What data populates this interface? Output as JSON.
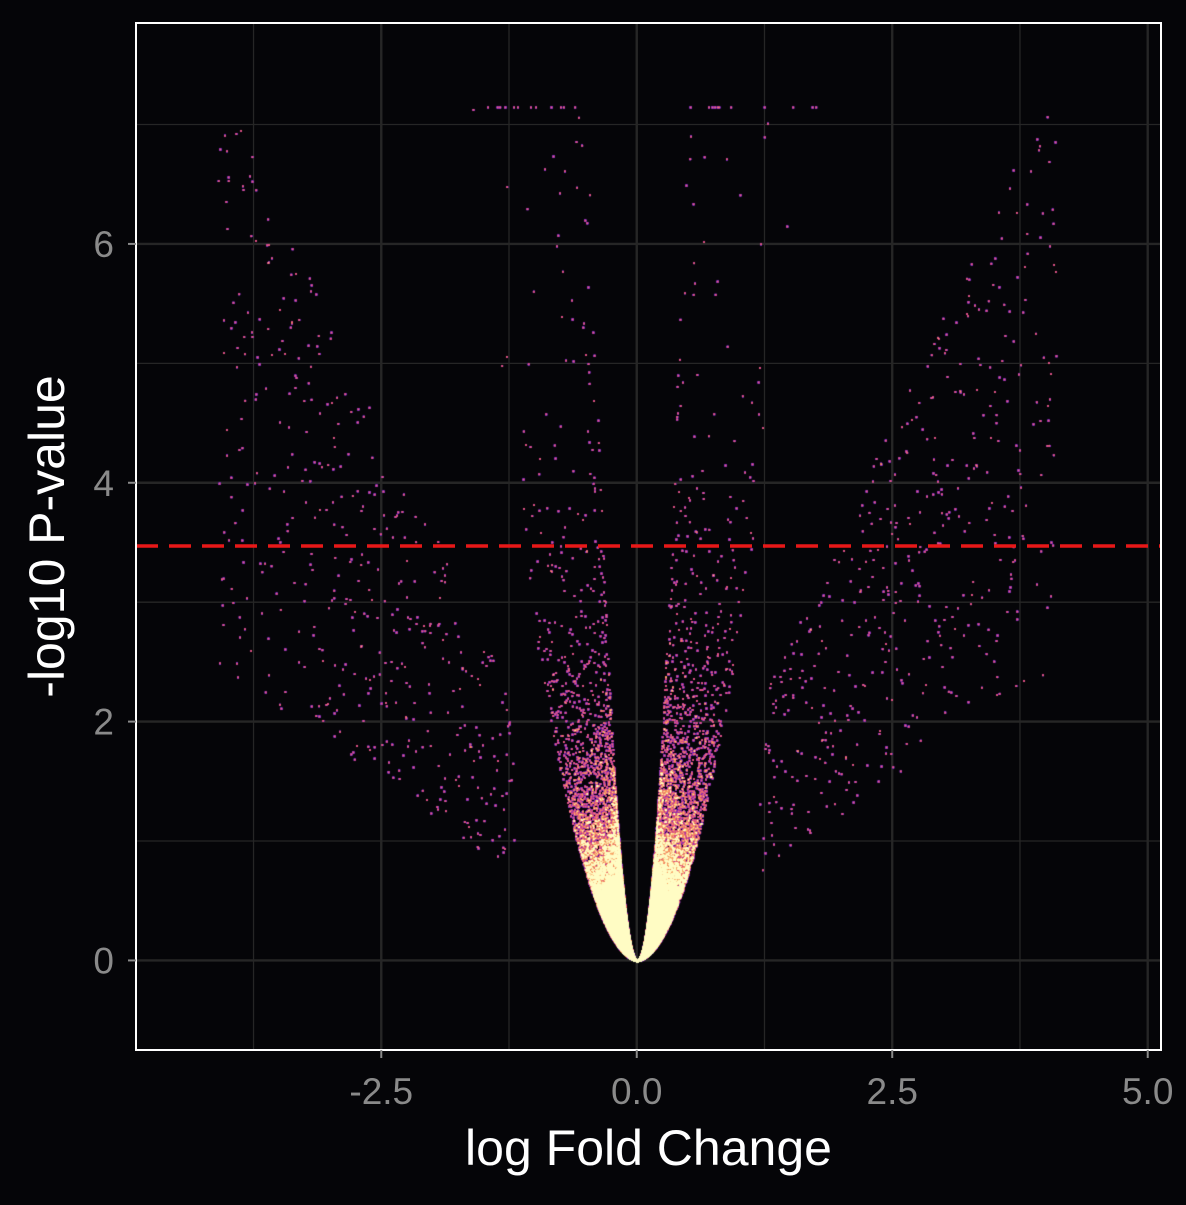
{
  "chart_data": {
    "type": "scatter",
    "title": "",
    "xlabel": "log Fold Change",
    "ylabel": "-log10 P-value",
    "xlim": [
      -4.9,
      5.13
    ],
    "ylim": [
      -0.75,
      7.85
    ],
    "x_ticks": [
      -2.5,
      0.0,
      2.5,
      5.0
    ],
    "x_tick_labels": [
      "-2.5",
      "0.0",
      "2.5",
      "5.0"
    ],
    "y_ticks": [
      0,
      2,
      4,
      6
    ],
    "y_tick_labels": [
      "0",
      "2",
      "4",
      "6"
    ],
    "grid": true,
    "legend": "none",
    "significance_threshold": 3.47,
    "colors": {
      "background": "#050508",
      "panel_border": "#ffffff",
      "grid": "#262626",
      "threshold_line": "#e81818",
      "density_low": "#7a2ab8",
      "density_mid": "#d9468a",
      "density_high": "#f79a5a",
      "density_peak": "#fffcc4"
    },
    "distribution": {
      "shape": "volcano",
      "center_x": 0.0,
      "point_count_estimate": 60000,
      "left_arm_max_x": -4.1,
      "right_arm_max_x": 4.5,
      "max_y": 7.15
    }
  }
}
